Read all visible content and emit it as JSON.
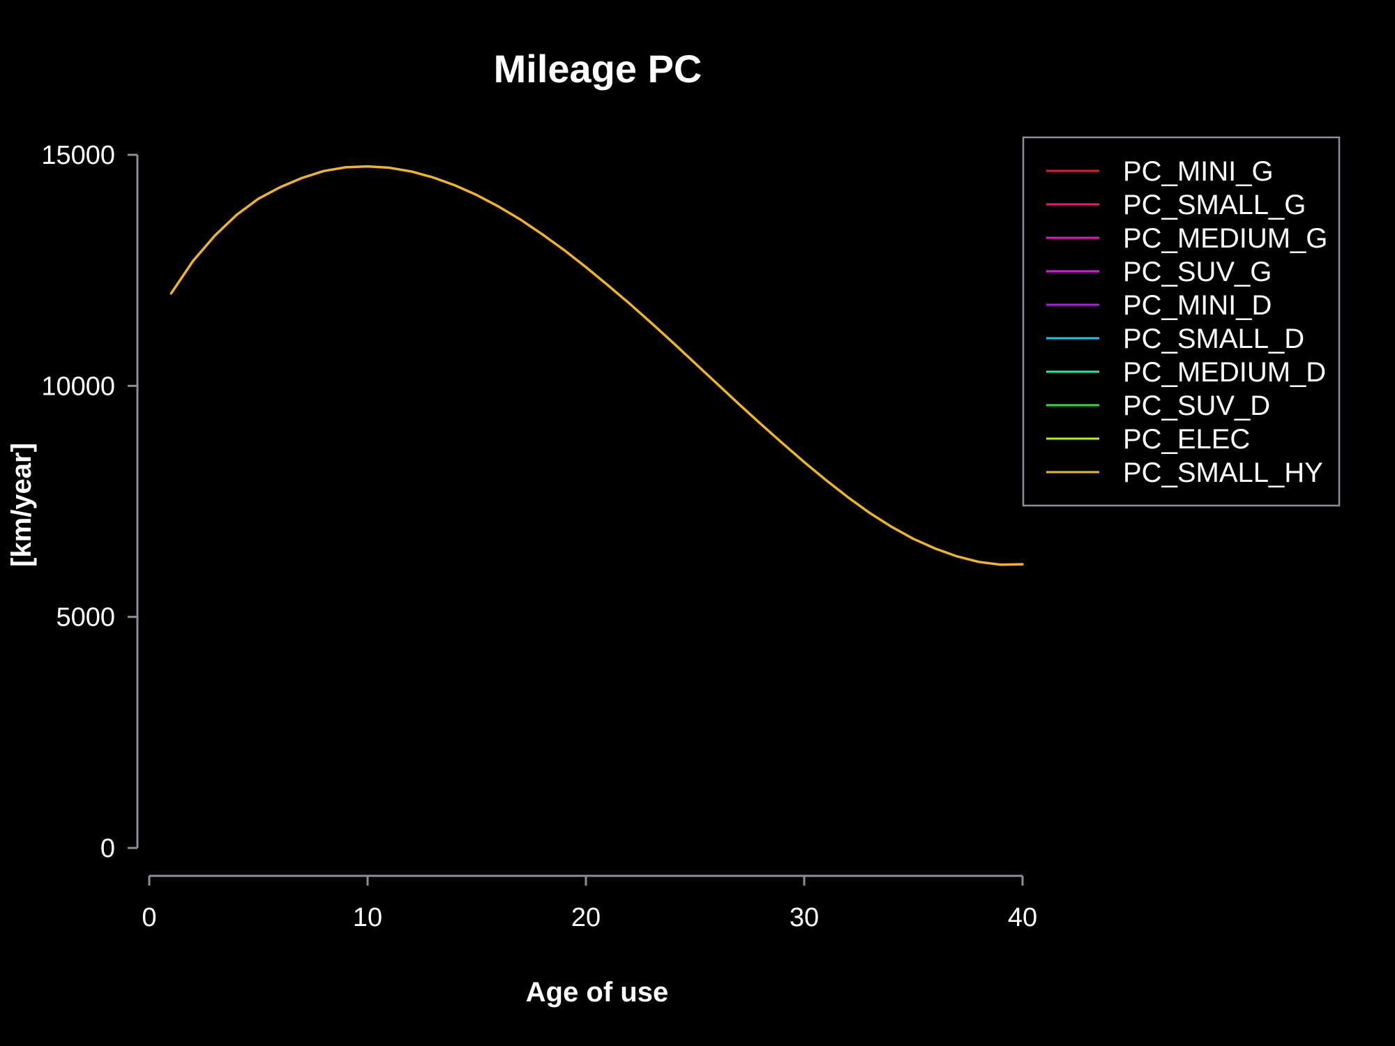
{
  "chart_data": {
    "type": "line",
    "title": "Mileage PC",
    "xlabel": "Age of use",
    "ylabel": "[km/year]",
    "xlim": [
      0,
      40
    ],
    "ylim": [
      0,
      15000
    ],
    "xticks": [
      0,
      10,
      20,
      30,
      40
    ],
    "yticks": [
      0,
      5000,
      10000,
      15000
    ],
    "grid": false,
    "legend_position": "top-right",
    "x": [
      1,
      2,
      3,
      4,
      5,
      6,
      7,
      8,
      9,
      10,
      11,
      12,
      13,
      14,
      15,
      16,
      17,
      18,
      19,
      20,
      21,
      22,
      23,
      24,
      25,
      26,
      27,
      28,
      29,
      30,
      31,
      32,
      33,
      34,
      35,
      36,
      37,
      38,
      39,
      40
    ],
    "series": [
      {
        "name": "PC_MINI_G",
        "color": "#e8173a",
        "values": null
      },
      {
        "name": "PC_SMALL_G",
        "color": "#f0147a",
        "values": null
      },
      {
        "name": "PC_MEDIUM_G",
        "color": "#f014c0",
        "values": null
      },
      {
        "name": "PC_SUV_G",
        "color": "#e614f0",
        "values": null
      },
      {
        "name": "PC_MINI_D",
        "color": "#b614f0",
        "values": null
      },
      {
        "name": "PC_SMALL_D",
        "color": "#14c8f0",
        "values": null
      },
      {
        "name": "PC_MEDIUM_D",
        "color": "#14f0a0",
        "values": null
      },
      {
        "name": "PC_SUV_D",
        "color": "#28e628",
        "values": null
      },
      {
        "name": "PC_ELEC",
        "color": "#b4f014",
        "values": null
      },
      {
        "name": "PC_SMALL_HY",
        "color": "#f0b428",
        "values": [
          12000,
          12700,
          13250,
          13700,
          14050,
          14300,
          14500,
          14650,
          14730,
          14750,
          14720,
          14640,
          14510,
          14340,
          14130,
          13880,
          13600,
          13280,
          12940,
          12570,
          12180,
          11780,
          11360,
          10930,
          10490,
          10050,
          9610,
          9180,
          8760,
          8350,
          7960,
          7590,
          7250,
          6950,
          6690,
          6480,
          6310,
          6190,
          6130,
          6140
        ]
      }
    ]
  }
}
